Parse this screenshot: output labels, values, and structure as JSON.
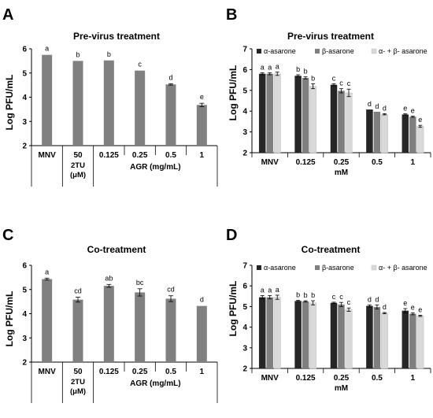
{
  "chart_data": [
    {
      "panel": "A",
      "type": "bar",
      "title": "Pre-virus treatment",
      "ylabel": "Log PFU/mL",
      "ylim": [
        2,
        6
      ],
      "yticks": [
        2,
        3,
        4,
        5,
        6
      ],
      "categories": [
        "MNV",
        "50",
        "0.125",
        "0.25",
        "0.5",
        "1"
      ],
      "sub_labels": {
        "twoTU": "2TU",
        "twoTU_unit": "(μM)",
        "agr": "AGR (mg/mL)"
      },
      "values": [
        5.75,
        5.5,
        5.52,
        5.1,
        4.53,
        3.68
      ],
      "errors": [
        0.0,
        0.0,
        0.0,
        0.0,
        0.03,
        0.07
      ],
      "letters": [
        "a",
        "b",
        "b",
        "c",
        "d",
        "e"
      ],
      "color": "#808080"
    },
    {
      "panel": "B",
      "type": "bar",
      "title": "Pre-virus treatment",
      "ylabel": "Log PFU/mL",
      "xlabel": "mM",
      "ylim": [
        2,
        7
      ],
      "yticks": [
        2,
        3,
        4,
        5,
        6,
        7
      ],
      "categories": [
        "MNV",
        "0.125",
        "0.25",
        "0.5",
        "1"
      ],
      "series": [
        {
          "name": "α-asarone",
          "color": "#262626",
          "values": [
            5.8,
            5.7,
            5.27,
            4.08,
            3.84
          ],
          "errors": [
            0.05,
            0.05,
            0.05,
            0.0,
            0.03
          ],
          "letters": [
            "a",
            "b",
            "c",
            "d",
            "e"
          ]
        },
        {
          "name": "β-asarone",
          "color": "#7f7f7f",
          "values": [
            5.8,
            5.6,
            4.98,
            3.97,
            3.73
          ],
          "errors": [
            0.05,
            0.05,
            0.1,
            0.0,
            0.03
          ],
          "letters": [
            "a",
            "b",
            "c",
            "d",
            "e"
          ]
        },
        {
          "name": "α- + β- asarone",
          "color": "#d9d9d9",
          "values": [
            5.8,
            5.2,
            4.88,
            3.85,
            3.27
          ],
          "errors": [
            0.08,
            0.12,
            0.18,
            0.03,
            0.05
          ],
          "letters": [
            "a",
            "b",
            "c",
            "d",
            "e"
          ]
        }
      ]
    },
    {
      "panel": "C",
      "type": "bar",
      "title": "Co-treatment",
      "ylabel": "Log PFU/mL",
      "ylim": [
        2,
        6
      ],
      "yticks": [
        2,
        3,
        4,
        5,
        6
      ],
      "categories": [
        "MNV",
        "50",
        "0.125",
        "0.25",
        "0.5",
        "1"
      ],
      "sub_labels": {
        "twoTU": "2TU",
        "twoTU_unit": "(μM)",
        "agr": "AGR (mg/mL)"
      },
      "values": [
        5.43,
        4.58,
        5.15,
        4.88,
        4.62,
        4.32
      ],
      "errors": [
        0.04,
        0.1,
        0.06,
        0.15,
        0.12,
        0.0
      ],
      "letters": [
        "a",
        "cd",
        "ab",
        "bc",
        "cd",
        "d"
      ],
      "color": "#808080"
    },
    {
      "panel": "D",
      "type": "bar",
      "title": "Co-treatment",
      "ylabel": "Log PFU/mL",
      "xlabel": "mM",
      "ylim": [
        2,
        7
      ],
      "yticks": [
        2,
        3,
        4,
        5,
        6,
        7
      ],
      "categories": [
        "MNV",
        "0.125",
        "0.25",
        "0.5",
        "1"
      ],
      "series": [
        {
          "name": "α-asarone",
          "color": "#262626",
          "values": [
            5.45,
            5.27,
            5.18,
            5.03,
            4.8
          ],
          "errors": [
            0.08,
            0.03,
            0.03,
            0.05,
            0.1
          ],
          "letters": [
            "a",
            "b",
            "c",
            "d",
            "e"
          ]
        },
        {
          "name": "β-asarone",
          "color": "#7f7f7f",
          "values": [
            5.45,
            5.25,
            5.1,
            4.98,
            4.65
          ],
          "errors": [
            0.08,
            0.03,
            0.1,
            0.1,
            0.05
          ],
          "letters": [
            "a",
            "b",
            "c",
            "d",
            "e"
          ]
        },
        {
          "name": "α- + β- asarone",
          "color": "#d9d9d9",
          "values": [
            5.45,
            5.18,
            4.85,
            4.68,
            4.55
          ],
          "errors": [
            0.1,
            0.1,
            0.08,
            0.03,
            0.03
          ],
          "letters": [
            "a",
            "b",
            "c",
            "d",
            "e"
          ]
        }
      ]
    }
  ]
}
